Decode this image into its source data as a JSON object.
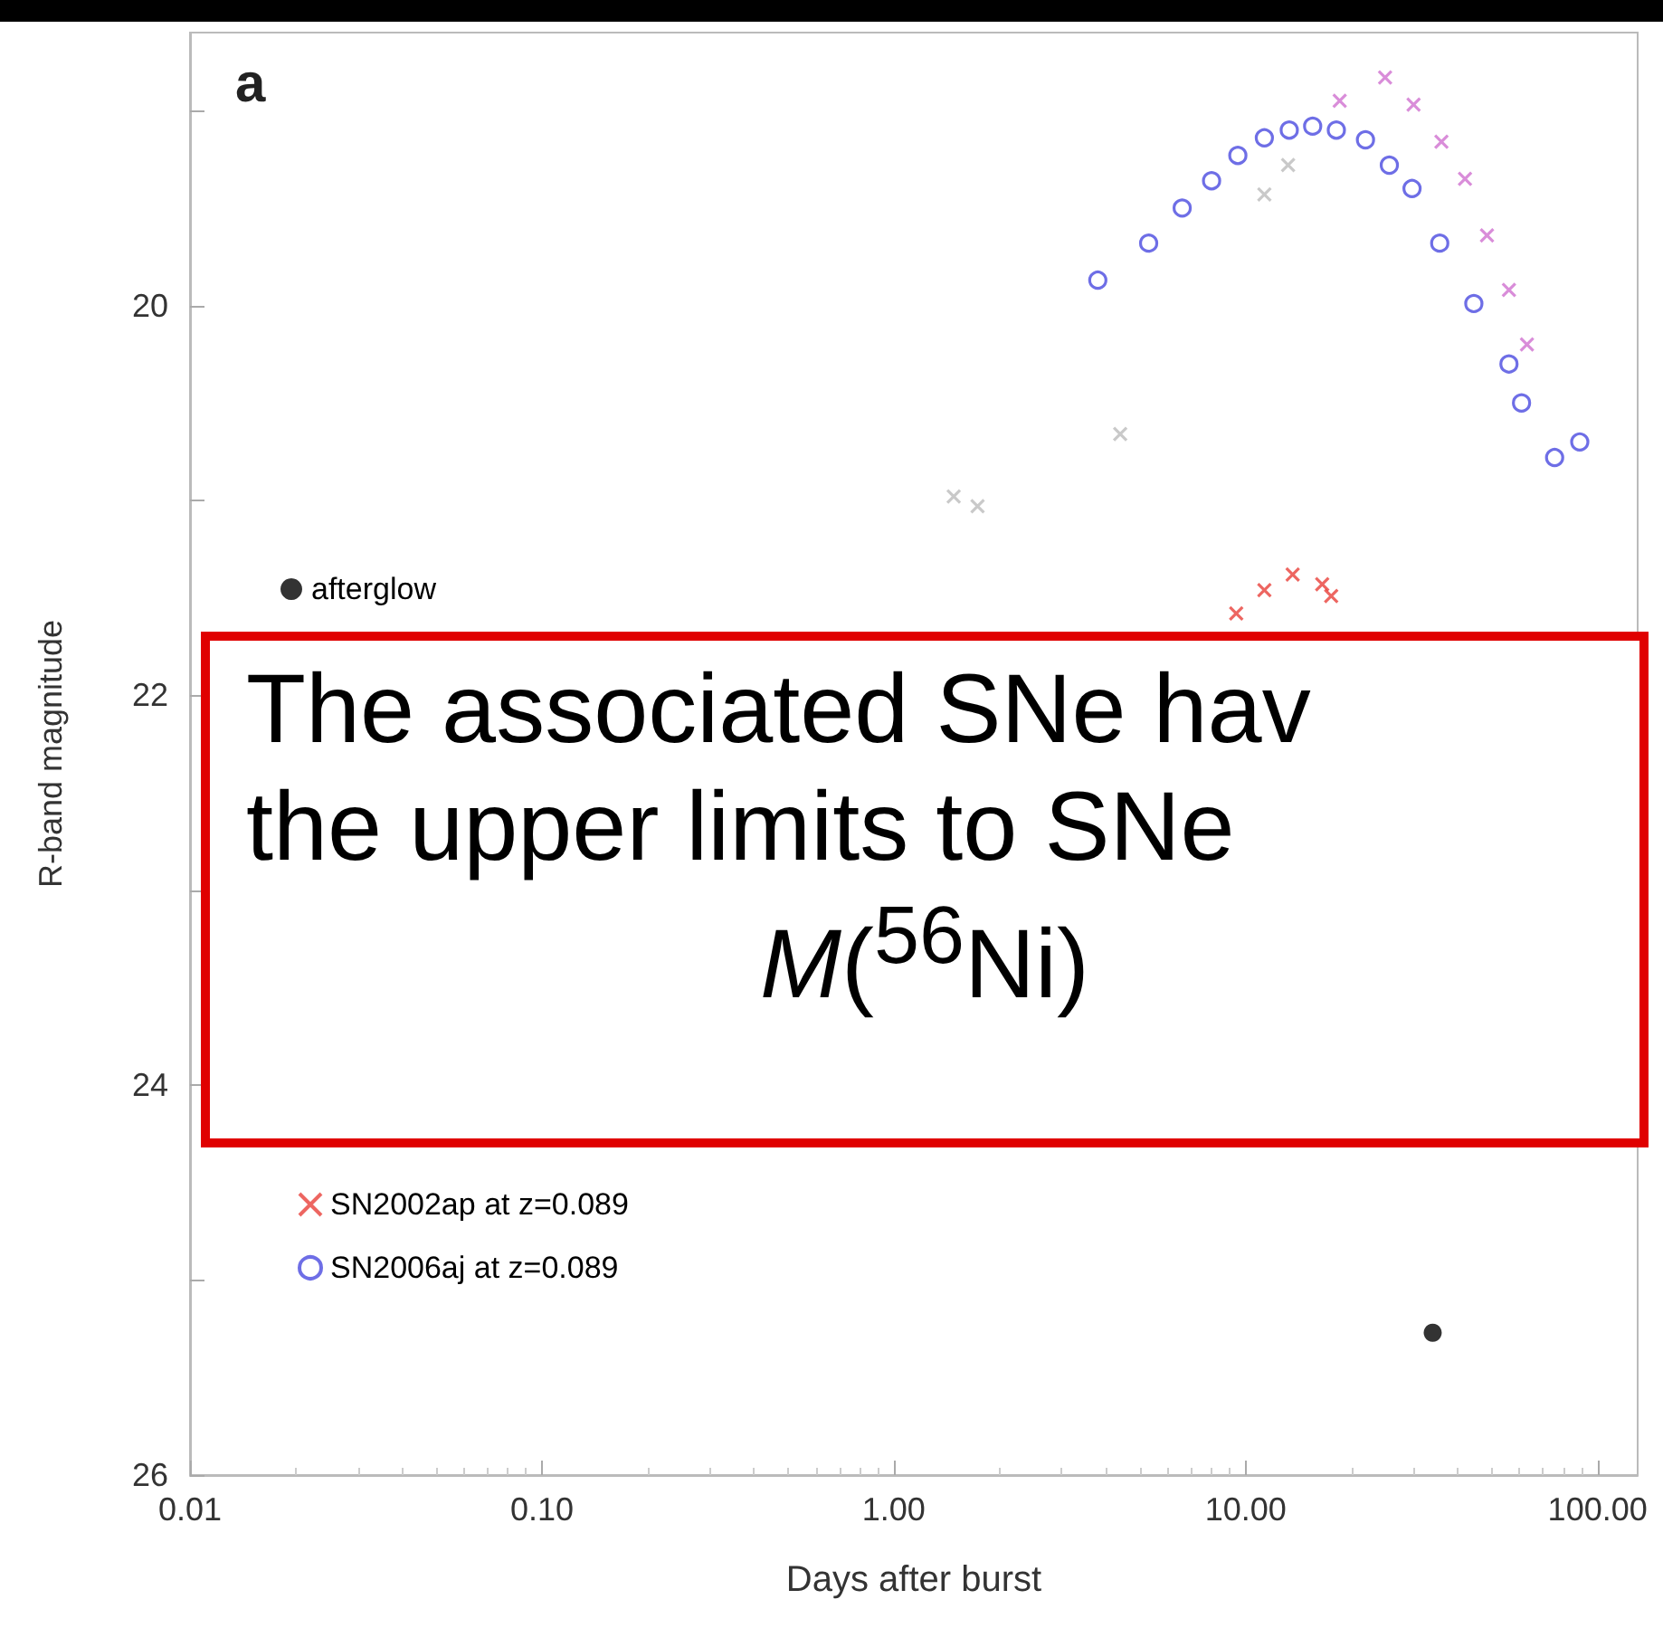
{
  "chart_data": {
    "type": "scatter",
    "xlabel": "Days after burst",
    "ylabel": "R-band magnitude",
    "log": "x",
    "xlim": [
      0.01,
      130
    ],
    "xticks": [
      {
        "value": 0.01,
        "label": "0.01"
      },
      {
        "value": 0.1,
        "label": "0.10"
      },
      {
        "value": 1,
        "label": "1.00"
      },
      {
        "value": 10,
        "label": "10.00"
      },
      {
        "value": 100,
        "label": "100.00"
      }
    ],
    "ylim": [
      26,
      18.6
    ],
    "yticks": [
      {
        "value": 19,
        "label": null
      },
      20,
      {
        "value": 21,
        "label": null
      },
      22,
      {
        "value": 23,
        "label": null
      },
      24,
      {
        "value": 25,
        "label": null
      },
      26
    ],
    "grid": false,
    "legend": "left",
    "annotations": [
      "a",
      "The associated SNe hav",
      "the upper limits to SNe",
      "M($^{56}$Ni)"
    ],
    "series": [
      {
        "name": "afterglow",
        "color": "#000000",
        "marker": "circle",
        "x": [
          34
        ],
        "values": [
          25.27
        ]
      },
      {
        "name": "SN2002ap at z=0.089",
        "color": "#e8403a",
        "marker": "cross",
        "x": [
          9.4,
          11.3,
          13.6,
          16.5,
          17.5
        ],
        "values": [
          21.58,
          21.46,
          21.38,
          21.43,
          21.49
        ]
      },
      {
        "name": "SN2006aj at z=0.089",
        "color": "#4a4ae0",
        "marker": "circle_open",
        "x": [
          3.8,
          5.3,
          6.6,
          8.0,
          9.5,
          11.3,
          13.3,
          15.5,
          18.1,
          21.9,
          25.6,
          29.7,
          35.6,
          44.5,
          56,
          60.8,
          75.5,
          89
        ],
        "values": [
          19.87,
          19.68,
          19.5,
          19.36,
          19.23,
          19.14,
          19.1,
          19.08,
          19.1,
          19.15,
          19.28,
          19.4,
          19.68,
          19.99,
          20.3,
          20.5,
          20.78,
          20.7
        ]
      },
      {
        "color": "#d070d0",
        "marker": "cross",
        "x": [
          18.5,
          24.9,
          30,
          36,
          42,
          48.5,
          56,
          63
        ],
        "values": [
          18.95,
          18.83,
          18.97,
          19.16,
          19.35,
          19.64,
          19.92,
          20.2
        ]
      },
      {
        "color": "#bbbbbb",
        "marker": "cross",
        "x": [
          1.48,
          1.73,
          4.4,
          11.3,
          13.2
        ],
        "values": [
          20.98,
          21.03,
          20.66,
          19.43,
          19.28
        ]
      }
    ]
  }
}
